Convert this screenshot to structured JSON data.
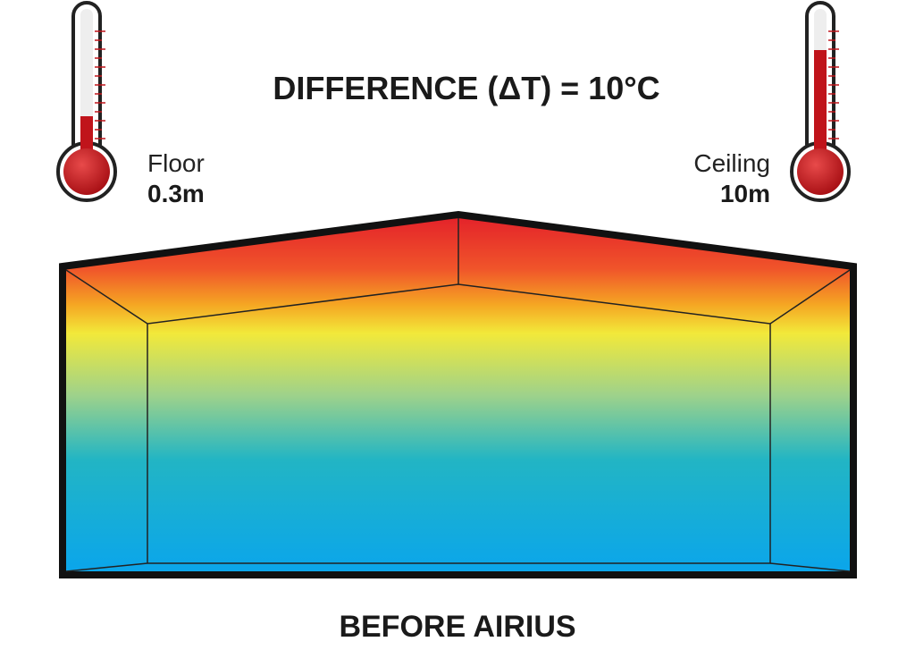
{
  "title": "DIFFERENCE (ΔT) = 10°C",
  "floor": {
    "label": "Floor",
    "height": "0.3m"
  },
  "ceiling": {
    "label": "Ceiling",
    "height": "10m"
  },
  "caption": "BEFORE AIRIUS"
}
